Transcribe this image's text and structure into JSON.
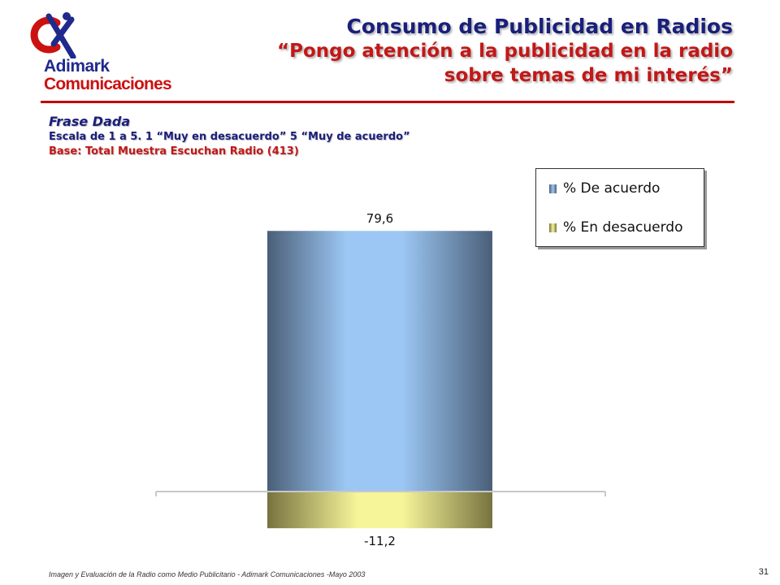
{
  "logo": {
    "line1": "Adimark",
    "line2": "Comunicaciones"
  },
  "header": {
    "title": "Consumo de Publicidad en Radios",
    "subtitle_line1": "“Pongo atención a la publicidad en la radio",
    "subtitle_line2": "sobre temas de mi interés”"
  },
  "notes": {
    "heading": "Frase Dada",
    "scale": "Escala de 1 a 5. 1 “Muy en desacuerdo” 5 “Muy de acuerdo”",
    "base": "Base: Total Muestra Escuchan Radio (413)"
  },
  "chart_data": {
    "type": "bar",
    "categories": [
      ""
    ],
    "series": [
      {
        "name": "% De acuerdo",
        "values": [
          79.6
        ],
        "label": "79,6",
        "color": "#8fb8e8"
      },
      {
        "name": "% En desacuerdo",
        "values": [
          -11.2
        ],
        "label": "-11,2",
        "color": "#e8e88a"
      }
    ],
    "stacked": true,
    "ylim": [
      -11.2,
      79.6
    ],
    "grid": false,
    "legend_position": "top-right"
  },
  "footer": {
    "text": "Imagen y Evaluación de la Radio como Medio Publicitario - Adimark Comunicaciones -Mayo 2003",
    "page": "31"
  }
}
